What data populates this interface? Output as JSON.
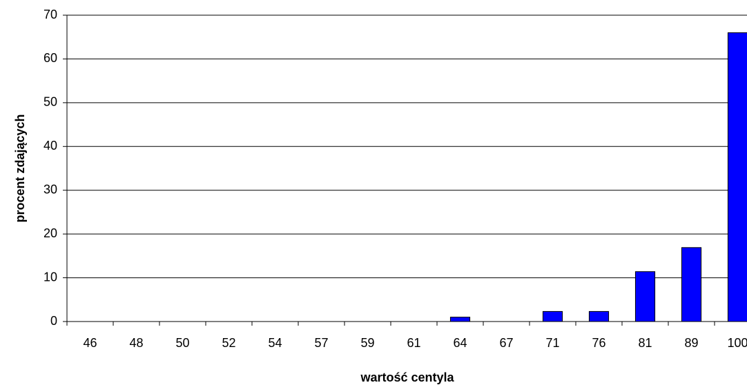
{
  "chart_data": {
    "type": "bar",
    "x_label": "wartość centyla",
    "y_label": "procent zdających",
    "categories": [
      "46",
      "48",
      "50",
      "52",
      "54",
      "57",
      "59",
      "61",
      "64",
      "67",
      "71",
      "76",
      "81",
      "89",
      "100"
    ],
    "values": [
      0,
      0,
      0,
      0,
      0,
      0,
      0,
      0,
      1,
      0,
      2.3,
      2.3,
      11.4,
      16.9,
      66
    ],
    "color": "#0000ff",
    "ylim": [
      0,
      70
    ],
    "yticks": [
      0,
      10,
      20,
      30,
      40,
      50,
      60,
      70
    ],
    "grid": true
  }
}
